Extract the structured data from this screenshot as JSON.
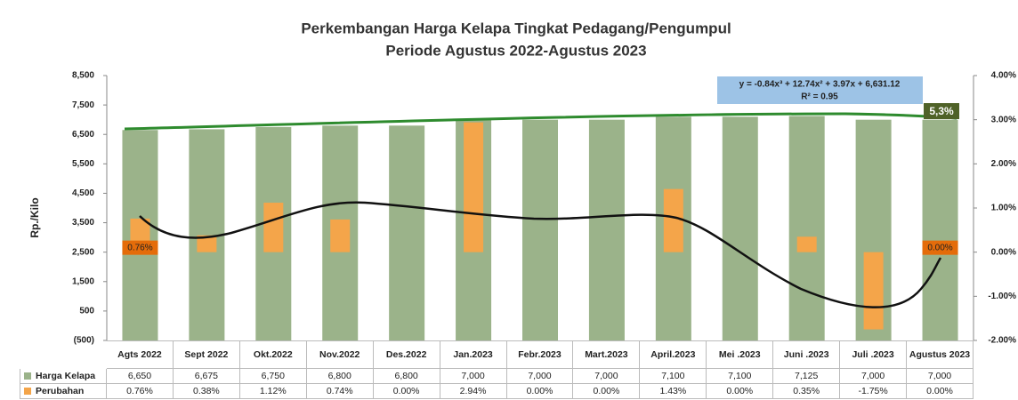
{
  "chart_data": {
    "type": "bar",
    "title": "Perkembangan Harga Kelapa  Tingkat Pedagang/Pengumpul",
    "subtitle": "Periode Agustus 2022-Agustus 2023",
    "y_label": "Rp./Kilo",
    "annotations": {
      "equation": "y = -0.84x³ + 12.74x² + 3.97x + 6,631.12",
      "r_squared": "R² = 0.95",
      "growth": "5,3%"
    },
    "categories": [
      "Agts 2022",
      "Sept 2022",
      "Okt.2022",
      "Nov.2022",
      "Des.2022",
      "Jan.2023",
      "Febr.2023",
      "Mart.2023",
      "April.2023",
      "Mei .2023",
      "Juni .2023",
      "Juli .2023",
      "Agustus 2023"
    ],
    "series": [
      {
        "name": "Harga Kelapa",
        "color": "#9bb38a",
        "values": [
          6650,
          6675,
          6750,
          6800,
          6800,
          7000,
          7000,
          7000,
          7100,
          7100,
          7125,
          7000,
          7000
        ],
        "value_labels": [
          "6,650",
          "6,675",
          "6,750",
          "6,800",
          "6,800",
          "7,000",
          "7,000",
          "7,000",
          "7,100",
          "7,100",
          "7,125",
          "7,000",
          "7,000"
        ]
      },
      {
        "name": "Perubahan",
        "color": "#f4a54a",
        "axis": "y2",
        "values": [
          0.76,
          0.38,
          1.12,
          0.74,
          0,
          2.94,
          0,
          0,
          1.43,
          0,
          0.35,
          -1.75,
          0
        ],
        "value_labels": [
          "0.76%",
          "0.38%",
          "1.12%",
          "0.74%",
          "0.00%",
          "2.94%",
          "0.00%",
          "0.00%",
          "1.43%",
          "0.00%",
          "0.35%",
          "-1.75%",
          "0.00%"
        ]
      }
    ],
    "ylim": [
      -500,
      8500
    ],
    "yticks": [
      {
        "value": -500,
        "label": "(500)"
      },
      500,
      {
        "value": 1500,
        "label": "1,500"
      },
      {
        "value": 2500,
        "label": "2,500"
      },
      {
        "value": 3500,
        "label": "3,500"
      },
      {
        "value": 4500,
        "label": "4,500"
      },
      {
        "value": 5500,
        "label": "5,500"
      },
      {
        "value": 6500,
        "label": "6,500"
      },
      {
        "value": 7500,
        "label": "7,500"
      },
      {
        "value": 8500,
        "label": "8,500"
      }
    ],
    "y2lim": [
      -2,
      4
    ],
    "y2ticks": [
      {
        "value": -2,
        "label": "-2.00%"
      },
      {
        "value": -1,
        "label": "-1.00%"
      },
      {
        "value": 0,
        "label": "0.00%"
      },
      {
        "value": 1,
        "label": "1.00%"
      },
      {
        "value": 2,
        "label": "2.00%"
      },
      {
        "value": 3,
        "label": "3.00%"
      },
      {
        "value": 4,
        "label": "4.00%"
      }
    ]
  }
}
